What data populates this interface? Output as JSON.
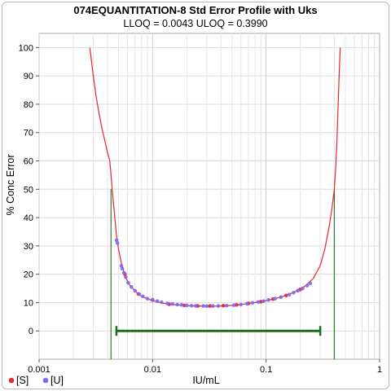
{
  "chart_data": {
    "type": "line",
    "title": "074EQUANTITATION-8 Std Error Profile with Uks",
    "subtitle": "LLOQ = 0.0043  ULOQ = 0.3990",
    "xlabel": "IU/mL",
    "ylabel": "% Conc Error",
    "x_scale": "log",
    "xlim": [
      0.001,
      1
    ],
    "ylim": [
      -10,
      105
    ],
    "x_ticks": [
      0.001,
      0.01,
      0.1,
      1
    ],
    "x_tick_labels": [
      "0.001",
      "0.01",
      "0.1",
      "1"
    ],
    "y_ticks": [
      0,
      10,
      20,
      30,
      40,
      50,
      60,
      70,
      80,
      90,
      100
    ],
    "y_tick_labels": [
      "0",
      "10",
      "20",
      "30",
      "40",
      "50",
      "60",
      "70",
      "80",
      "90",
      "100"
    ],
    "grid": true,
    "profile_curve": {
      "color": "#e8262b",
      "points": [
        [
          0.0028,
          100
        ],
        [
          0.003,
          90
        ],
        [
          0.0032,
          82
        ],
        [
          0.0034,
          76
        ],
        [
          0.0036,
          71
        ],
        [
          0.0038,
          67
        ],
        [
          0.004,
          63
        ],
        [
          0.0042,
          60
        ],
        [
          0.0043,
          55
        ],
        [
          0.0044,
          50
        ],
        [
          0.0046,
          42
        ],
        [
          0.0048,
          34
        ],
        [
          0.005,
          29
        ],
        [
          0.0053,
          24
        ],
        [
          0.0057,
          19.5
        ],
        [
          0.0062,
          16.5
        ],
        [
          0.007,
          14
        ],
        [
          0.008,
          12.2
        ],
        [
          0.0095,
          11
        ],
        [
          0.011,
          10.2
        ],
        [
          0.013,
          9.6
        ],
        [
          0.016,
          9.2
        ],
        [
          0.02,
          8.9
        ],
        [
          0.025,
          8.8
        ],
        [
          0.03,
          8.7
        ],
        [
          0.04,
          8.8
        ],
        [
          0.05,
          9.0
        ],
        [
          0.065,
          9.5
        ],
        [
          0.08,
          10.0
        ],
        [
          0.1,
          10.7
        ],
        [
          0.12,
          11.4
        ],
        [
          0.15,
          12.5
        ],
        [
          0.18,
          13.8
        ],
        [
          0.22,
          15.8
        ],
        [
          0.26,
          18.5
        ],
        [
          0.3,
          23
        ],
        [
          0.33,
          29
        ],
        [
          0.36,
          37
        ],
        [
          0.38,
          43
        ],
        [
          0.399,
          50
        ],
        [
          0.41,
          57
        ],
        [
          0.42,
          66
        ],
        [
          0.43,
          78
        ],
        [
          0.44,
          90
        ],
        [
          0.45,
          100
        ]
      ]
    },
    "loq_lines": {
      "color": "#2a7a2a",
      "lloq": 0.0043,
      "uloq": 0.399,
      "level": 50
    },
    "range_bar": {
      "color": "#1f6b1f",
      "x_start": 0.0048,
      "x_end": 0.3,
      "y": 0
    },
    "series": [
      {
        "name": "[S]",
        "color": "#e8262b",
        "points": [
          [
            0.0057,
            20
          ],
          [
            0.0075,
            13
          ],
          [
            0.01,
            10.9
          ],
          [
            0.014,
            9.4
          ],
          [
            0.019,
            9.0
          ],
          [
            0.025,
            8.8
          ],
          [
            0.032,
            8.8
          ],
          [
            0.042,
            8.9
          ],
          [
            0.055,
            9.2
          ],
          [
            0.07,
            9.7
          ],
          [
            0.09,
            10.3
          ],
          [
            0.115,
            11.2
          ],
          [
            0.15,
            12.5
          ],
          [
            0.2,
            14.6
          ]
        ]
      },
      {
        "name": "[U]",
        "color": "#7b6cf0",
        "points": [
          [
            0.0048,
            32
          ],
          [
            0.0049,
            31
          ],
          [
            0.0053,
            23
          ],
          [
            0.0054,
            22
          ],
          [
            0.0056,
            20.5
          ],
          [
            0.0058,
            19
          ],
          [
            0.0061,
            17
          ],
          [
            0.0065,
            15.5
          ],
          [
            0.007,
            14.2
          ],
          [
            0.0076,
            13
          ],
          [
            0.0082,
            12.2
          ],
          [
            0.009,
            11.4
          ],
          [
            0.01,
            11
          ],
          [
            0.011,
            10.5
          ],
          [
            0.012,
            10.1
          ],
          [
            0.0135,
            9.7
          ],
          [
            0.015,
            9.5
          ],
          [
            0.0165,
            9.3
          ],
          [
            0.018,
            9.2
          ],
          [
            0.02,
            9.0
          ],
          [
            0.022,
            8.9
          ],
          [
            0.024,
            8.85
          ],
          [
            0.028,
            8.8
          ],
          [
            0.03,
            8.75
          ],
          [
            0.034,
            8.8
          ],
          [
            0.038,
            8.8
          ],
          [
            0.045,
            8.9
          ],
          [
            0.052,
            9.1
          ],
          [
            0.06,
            9.3
          ],
          [
            0.068,
            9.6
          ],
          [
            0.076,
            9.9
          ],
          [
            0.085,
            10.2
          ],
          [
            0.095,
            10.5
          ],
          [
            0.105,
            10.9
          ],
          [
            0.12,
            11.4
          ],
          [
            0.135,
            11.9
          ],
          [
            0.16,
            12.8
          ],
          [
            0.175,
            13.5
          ],
          [
            0.19,
            14.2
          ],
          [
            0.21,
            15.0
          ],
          [
            0.23,
            16.0
          ],
          [
            0.245,
            16.8
          ]
        ]
      }
    ]
  }
}
